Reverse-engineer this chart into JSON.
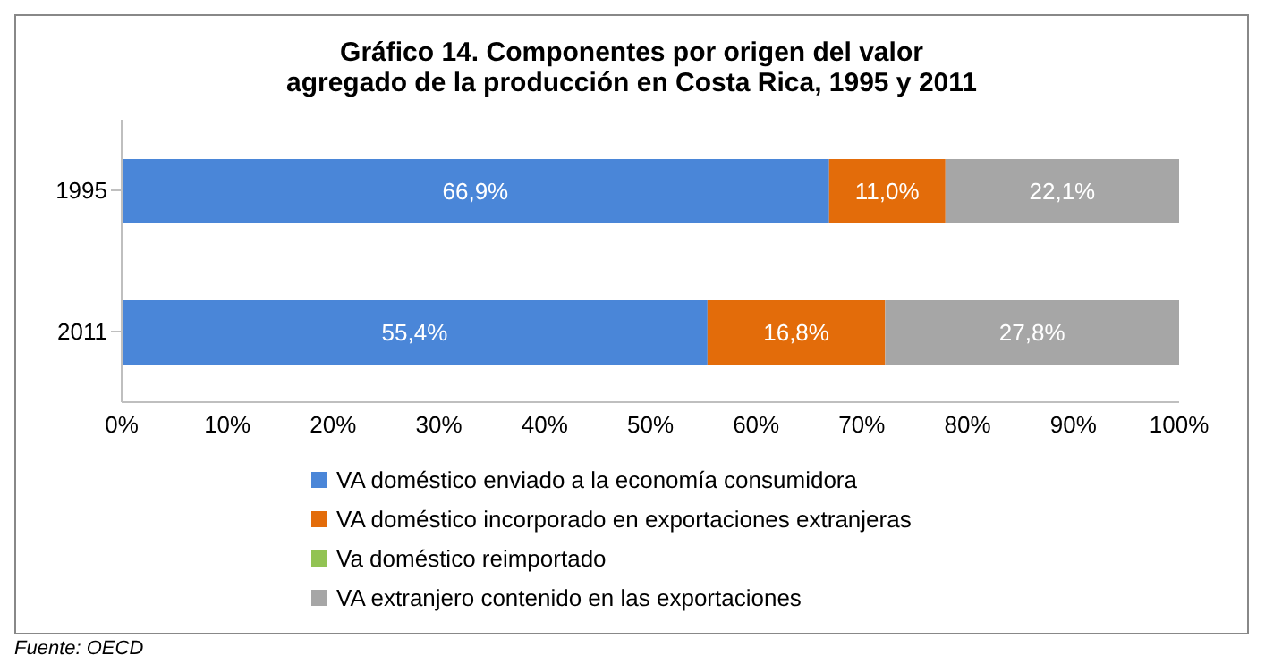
{
  "chart_data": {
    "type": "bar",
    "orientation": "horizontal",
    "stacked": true,
    "title": "Gráfico 14. Componentes por origen del valor agregado de la producción en Costa Rica, 1995 y 2011",
    "categories": [
      "1995",
      "2011"
    ],
    "series": [
      {
        "name": "VA doméstico enviado a la economía consumidora",
        "color": "#4a86d8",
        "values": [
          66.9,
          55.4
        ],
        "value_labels": [
          "66,9%",
          "55,4%"
        ]
      },
      {
        "name": "VA doméstico incorporado en exportaciones extranjeras",
        "color": "#e36c0a",
        "values": [
          11.0,
          16.8
        ],
        "value_labels": [
          "11,0%",
          "16,8%"
        ]
      },
      {
        "name": "Va doméstico reimportado",
        "color": "#92c353",
        "values": [
          0,
          0
        ],
        "value_labels": [
          null,
          null
        ]
      },
      {
        "name": "VA extranjero contenido en las exportaciones",
        "color": "#a6a6a6",
        "values": [
          22.1,
          27.8
        ],
        "value_labels": [
          "22,1%",
          "27,8%"
        ]
      }
    ],
    "xlim": [
      0,
      100
    ],
    "xticks": [
      {
        "value": 0,
        "label": "0%"
      },
      {
        "value": 10,
        "label": "10%"
      },
      {
        "value": 20,
        "label": "20%"
      },
      {
        "value": 30,
        "label": "30%"
      },
      {
        "value": 40,
        "label": "40%"
      },
      {
        "value": 50,
        "label": "50%"
      },
      {
        "value": 60,
        "label": "60%"
      },
      {
        "value": 70,
        "label": "70%"
      },
      {
        "value": 80,
        "label": "80%"
      },
      {
        "value": 90,
        "label": "90%"
      },
      {
        "value": 100,
        "label": "100%"
      }
    ],
    "grid": false,
    "legend": "bottom",
    "annotations": [
      "Fuente: OECD"
    ]
  }
}
